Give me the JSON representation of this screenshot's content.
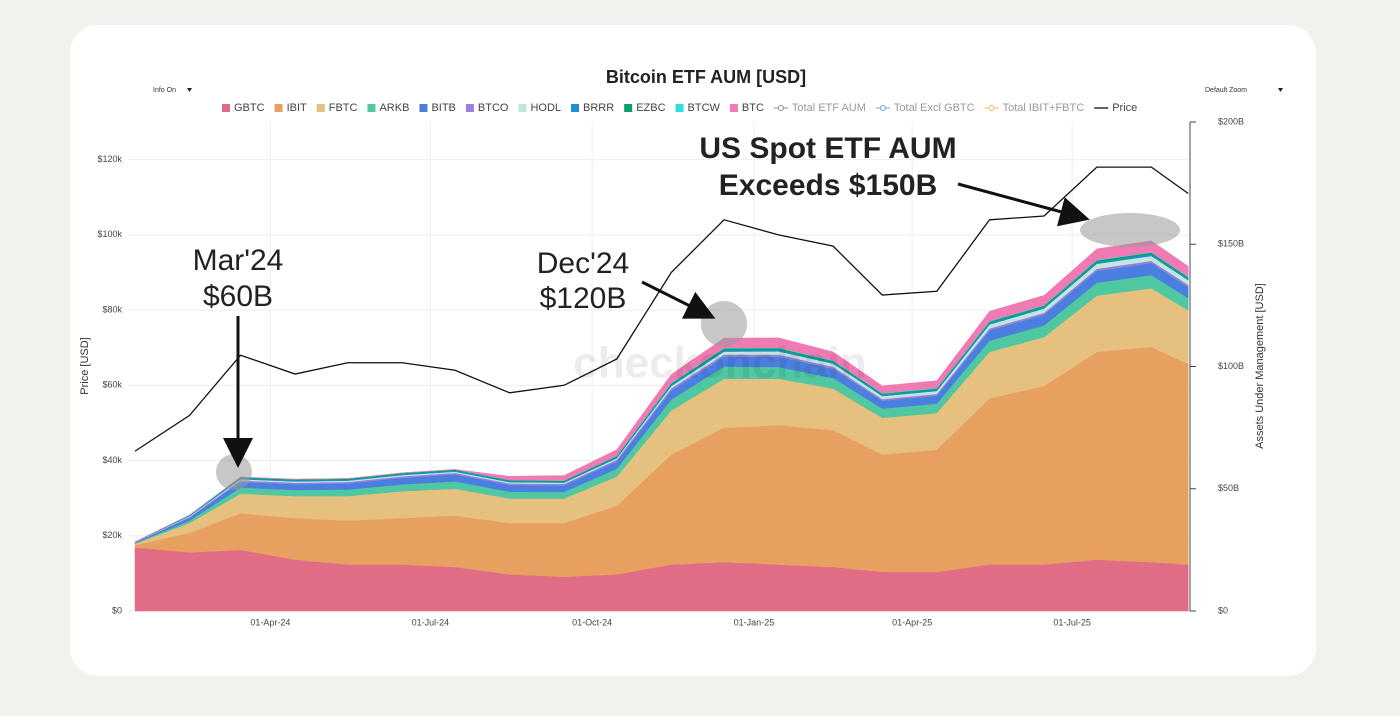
{
  "chart_data": {
    "type": "stacked-area",
    "title": "Bitcoin ETF AUM [USD]",
    "controls": [
      "Info On",
      "Default Zoom"
    ],
    "ylabel": "Price [USD]",
    "y2label": "Assets Under Management [USD]",
    "watermark": "checkonchain",
    "annotations": [
      {
        "lines": [
          "Mar'24",
          "$60B"
        ]
      },
      {
        "lines": [
          "Dec'24",
          "$120B"
        ]
      },
      {
        "lines": [
          "US Spot ETF AUM",
          "Exceeds $150B"
        ]
      }
    ],
    "x": [
      "2024-01-15",
      "2024-02-15",
      "2024-03-15",
      "2024-04-15",
      "2024-05-15",
      "2024-06-15",
      "2024-07-15",
      "2024-08-15",
      "2024-09-15",
      "2024-10-15",
      "2024-11-15",
      "2024-12-15",
      "2025-01-15",
      "2025-02-15",
      "2025-03-15",
      "2025-04-15",
      "2025-05-15",
      "2025-06-15",
      "2025-07-15",
      "2025-08-15",
      "2025-09-05"
    ],
    "xlim": [
      "2024-01-11",
      "2025-09-06"
    ],
    "xticks": [
      {
        "value": "2024-04-01",
        "label": "01-Apr-24"
      },
      {
        "value": "2024-07-01",
        "label": "01-Jul-24"
      },
      {
        "value": "2024-10-01",
        "label": "01-Oct-24"
      },
      {
        "value": "2025-01-01",
        "label": "01-Jan-25"
      },
      {
        "value": "2025-04-01",
        "label": "01-Apr-25"
      },
      {
        "value": "2025-07-01",
        "label": "01-Jul-25"
      }
    ],
    "ylim": [
      0,
      130000
    ],
    "yticks": [
      {
        "value": 0,
        "label": "$0"
      },
      {
        "value": 20000,
        "label": "$20k"
      },
      {
        "value": 40000,
        "label": "$40k"
      },
      {
        "value": 60000,
        "label": "$60k"
      },
      {
        "value": 80000,
        "label": "$80k"
      },
      {
        "value": 100000,
        "label": "$100k"
      },
      {
        "value": 120000,
        "label": "$120k"
      }
    ],
    "y2lim": [
      0,
      200
    ],
    "y2ticks": [
      {
        "value": 0,
        "label": "$0"
      },
      {
        "value": 50,
        "label": "$50B"
      },
      {
        "value": 100,
        "label": "$100B"
      },
      {
        "value": 150,
        "label": "$150B"
      },
      {
        "value": 200,
        "label": "$200B"
      }
    ],
    "grid": true,
    "series": [
      {
        "name": "GBTC",
        "color": "#e06c86",
        "axis": "y2",
        "values": [
          26,
          24,
          25,
          21,
          19,
          19,
          18,
          15,
          14,
          15,
          19,
          20,
          19,
          18,
          16,
          16,
          19,
          19,
          21,
          20,
          19
        ]
      },
      {
        "name": "IBIT",
        "color": "#e8a060",
        "axis": "y2",
        "values": [
          1,
          8,
          15,
          17,
          18,
          19,
          21,
          21,
          22,
          28,
          45,
          55,
          57,
          56,
          48,
          50,
          68,
          73,
          85,
          88,
          82
        ]
      },
      {
        "name": "FBTC",
        "color": "#e6c07f",
        "axis": "y2",
        "values": [
          0.5,
          4,
          8,
          9,
          10,
          11,
          11,
          10,
          10,
          12,
          18,
          20,
          19,
          17,
          15,
          15,
          19,
          20,
          23,
          24,
          22
        ]
      },
      {
        "name": "ARKB",
        "color": "#4fc7a0",
        "axis": "y2",
        "values": [
          0.2,
          1,
          2.5,
          2.5,
          2.7,
          2.8,
          3,
          2.8,
          2.7,
          3.2,
          4.5,
          5,
          4.8,
          4.3,
          3.8,
          3.8,
          4.6,
          4.8,
          5.3,
          5.4,
          5
        ]
      },
      {
        "name": "BITB",
        "color": "#4a7fe0",
        "axis": "y2",
        "values": [
          0.3,
          1.2,
          2.3,
          2.4,
          2.5,
          2.7,
          2.9,
          2.8,
          2.7,
          3,
          3.7,
          4,
          4.2,
          3.8,
          3.2,
          3.3,
          4.2,
          4.4,
          4.8,
          4.9,
          4.5
        ]
      },
      {
        "name": "BTCO",
        "color": "#9a7fe0",
        "axis": "y2",
        "values": [
          0.1,
          0.3,
          0.6,
          0.6,
          0.6,
          0.6,
          0.6,
          0.6,
          0.6,
          0.7,
          0.9,
          0.9,
          0.9,
          0.8,
          0.7,
          0.7,
          0.8,
          0.8,
          0.9,
          0.9,
          0.9
        ]
      },
      {
        "name": "HODL",
        "color": "#bfe8d8",
        "axis": "y2",
        "values": [
          0.1,
          0.3,
          0.5,
          0.5,
          0.5,
          0.5,
          0.5,
          0.5,
          0.5,
          0.6,
          0.9,
          1.2,
          1.3,
          1.3,
          1.2,
          1.2,
          1.6,
          1.7,
          2,
          2,
          1.9
        ]
      },
      {
        "name": "BRRR",
        "color": "#1f8ed6",
        "axis": "y2",
        "values": [
          0.05,
          0.2,
          0.4,
          0.4,
          0.4,
          0.4,
          0.4,
          0.4,
          0.4,
          0.4,
          0.5,
          0.6,
          0.6,
          0.5,
          0.5,
          0.5,
          0.6,
          0.6,
          0.7,
          0.7,
          0.6
        ]
      },
      {
        "name": "EZBC",
        "color": "#0f9e6a",
        "axis": "y2",
        "values": [
          0.05,
          0.2,
          0.4,
          0.4,
          0.4,
          0.4,
          0.4,
          0.4,
          0.4,
          0.5,
          0.6,
          0.7,
          0.7,
          0.6,
          0.5,
          0.5,
          0.6,
          0.6,
          0.7,
          0.7,
          0.6
        ]
      },
      {
        "name": "BTCW",
        "color": "#30dede",
        "axis": "y2",
        "values": [
          0.01,
          0.05,
          0.1,
          0.1,
          0.1,
          0.1,
          0.1,
          0.1,
          0.1,
          0.1,
          0.2,
          0.2,
          0.2,
          0.2,
          0.2,
          0.2,
          0.2,
          0.2,
          0.2,
          0.2,
          0.2
        ]
      },
      {
        "name": "BTC",
        "color": "#f07ab4",
        "axis": "y2",
        "values": [
          0,
          0,
          0,
          0,
          0,
          0,
          0,
          1.5,
          2,
          2.5,
          3.5,
          4,
          4,
          3.5,
          3,
          3,
          4,
          4,
          4.5,
          4.6,
          4.3
        ]
      },
      {
        "name": "Price",
        "color": "#111111",
        "axis": "y",
        "values": [
          42500,
          52000,
          68000,
          63000,
          66000,
          66000,
          64000,
          58000,
          60000,
          67000,
          90000,
          104000,
          100000,
          97000,
          84000,
          85000,
          104000,
          105000,
          118000,
          118000,
          111000
        ]
      }
    ],
    "legend_lines": [
      {
        "name": "Total ETF AUM",
        "color": "#8a8a8a"
      },
      {
        "name": "Total Excl GBTC",
        "color": "#6aa6e8"
      },
      {
        "name": "Total IBIT+FBTC",
        "color": "#f0b860"
      }
    ]
  }
}
